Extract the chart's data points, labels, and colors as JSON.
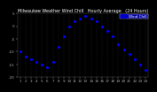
{
  "title": "Milwaukee Weather Wind Chill   Hourly Average   (24 Hours)",
  "background_color": "#000000",
  "plot_bg_color": "#000000",
  "dot_color": "#0000ff",
  "legend_bg": "#0000cc",
  "legend_label": "Wind Chill",
  "hours": [
    1,
    2,
    3,
    4,
    5,
    6,
    7,
    8,
    9,
    10,
    11,
    12,
    13,
    14,
    15,
    16,
    17,
    18,
    19,
    20,
    21,
    22,
    23,
    24
  ],
  "wind_chill": [
    -10,
    -12,
    -13,
    -14,
    -15,
    -16,
    -14,
    -8,
    -4,
    0,
    2,
    3,
    4,
    3,
    2,
    0,
    -2,
    -4,
    -7,
    -9,
    -11,
    -13,
    -15,
    -17
  ],
  "ylim": [
    -20,
    5
  ],
  "xlim": [
    0.5,
    24.5
  ],
  "title_fontsize": 3.5,
  "tick_fontsize": 3.0,
  "grid_color": "#555555",
  "text_color": "#ffffff",
  "tick_color": "#aaaaaa"
}
